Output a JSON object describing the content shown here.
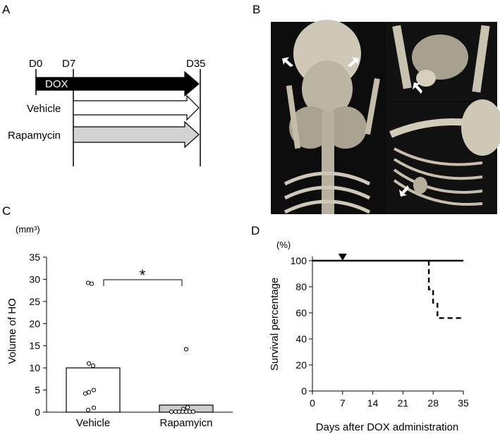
{
  "panels": {
    "a": "A",
    "b": "B",
    "c": "C",
    "d": "D"
  },
  "panel_a": {
    "day_labels": [
      "D0",
      "D7",
      "D35"
    ],
    "dox_label": "DOX",
    "groups": [
      "Vehicle",
      "Rapamycin"
    ],
    "colors": {
      "dox": "#000000",
      "vehicle": "#ffffff",
      "rapamycin": "#d3d3d3"
    }
  },
  "panel_b": {
    "type": "photo-collage"
  },
  "chart_data": [
    {
      "panel": "C",
      "type": "bar",
      "title": "",
      "unit": "(mm³)",
      "xlabel": "",
      "ylabel": "Volume of HO",
      "categories": [
        "Vehicle",
        "Rapamyicn"
      ],
      "values": [
        10.0,
        1.6
      ],
      "bar_colors": [
        "#ffffff",
        "#cccccc"
      ],
      "points": [
        [
          29.2,
          29.0,
          11.0,
          10.5,
          5.0,
          4.5,
          4.2,
          1.0,
          0.5
        ],
        [
          14.2,
          1.1,
          0.7,
          0.1,
          0.1,
          0.1,
          0.1,
          0.1,
          0.1,
          0.1
        ]
      ],
      "significance": "*",
      "ylim": [
        0,
        35
      ],
      "yticks": [
        0,
        5,
        10,
        15,
        20,
        25,
        30,
        35
      ]
    },
    {
      "panel": "D",
      "type": "line",
      "title": "",
      "unit": "(%)",
      "xlabel": "Days after DOX administration",
      "ylabel": "Survival percentage",
      "xlim": [
        0,
        35
      ],
      "ylim": [
        0,
        100
      ],
      "xticks": [
        0,
        7,
        14,
        21,
        28,
        35
      ],
      "yticks": [
        0,
        20,
        40,
        60,
        80,
        100
      ],
      "marker": {
        "x": 7,
        "shape": "triangle-down"
      },
      "series": [
        {
          "style": "solid",
          "x": [
            0,
            35
          ],
          "y": [
            100,
            100
          ]
        },
        {
          "style": "dashed",
          "x": [
            0,
            27,
            27,
            28,
            28,
            29,
            29,
            35
          ],
          "y": [
            100,
            100,
            78,
            78,
            67,
            67,
            56,
            56
          ]
        }
      ]
    }
  ]
}
